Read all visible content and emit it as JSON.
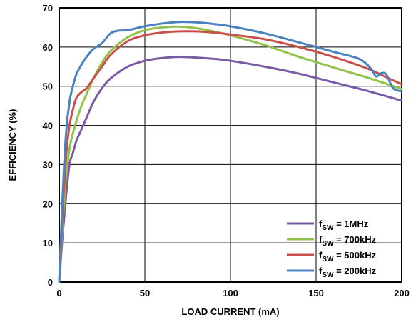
{
  "chart_data": {
    "type": "line",
    "title": "",
    "xlabel": "LOAD CURRENT (mA)",
    "ylabel": "EFFICIENCY (%)",
    "xlim": [
      0,
      200
    ],
    "ylim": [
      0,
      70
    ],
    "xticks": [
      0,
      50,
      100,
      150,
      200
    ],
    "yticks": [
      0,
      10,
      20,
      30,
      40,
      50,
      60,
      70
    ],
    "grid": true,
    "legend_position": "bottom-right",
    "series": [
      {
        "name_main": "f",
        "name_sub": "SW",
        "name_suffix": " = 1MHz",
        "color": "#7a5aa6",
        "x": [
          0,
          2,
          4,
          6,
          8,
          10,
          13,
          16,
          20,
          25,
          30,
          40,
          50,
          60,
          70,
          80,
          90,
          100,
          120,
          140,
          160,
          180,
          200
        ],
        "y": [
          0,
          12,
          22,
          30,
          33,
          36,
          39,
          42,
          46,
          49.5,
          52,
          55,
          56.5,
          57.2,
          57.5,
          57.3,
          57,
          56.5,
          55,
          53.2,
          51,
          48.8,
          46.3
        ]
      },
      {
        "name_main": "f",
        "name_sub": "SW",
        "name_suffix": " = 700kHz",
        "color": "#93c24a",
        "x": [
          0,
          2,
          4,
          6,
          8,
          10,
          13,
          16,
          20,
          25,
          30,
          40,
          50,
          60,
          70,
          80,
          90,
          100,
          120,
          140,
          160,
          180,
          200
        ],
        "y": [
          0,
          15,
          27,
          34,
          38,
          41,
          45,
          48,
          52,
          56,
          59,
          62.5,
          64.3,
          65,
          65.2,
          64.8,
          64,
          63,
          60.5,
          57.5,
          54.8,
          52.2,
          49.3
        ]
      },
      {
        "name_main": "f",
        "name_sub": "SW",
        "name_suffix": " = 500kHz",
        "color": "#c8504b",
        "x": [
          0,
          2,
          4,
          6,
          8,
          10,
          13,
          16,
          20,
          25,
          30,
          40,
          50,
          60,
          70,
          80,
          90,
          100,
          120,
          140,
          160,
          180,
          190,
          200
        ],
        "y": [
          0,
          18,
          32,
          40,
          44,
          47,
          48.5,
          49.5,
          52,
          55,
          58,
          61.5,
          63,
          63.7,
          64,
          64,
          63.7,
          63.2,
          62,
          60,
          57.5,
          54.5,
          52.5,
          50.5
        ]
      },
      {
        "name_main": "f",
        "name_sub": "SW",
        "name_suffix": " = 200kHz",
        "color": "#4a82c0",
        "x": [
          0,
          2,
          4,
          6,
          8,
          10,
          13,
          16,
          20,
          25,
          30,
          35,
          40,
          50,
          60,
          70,
          80,
          90,
          100,
          120,
          140,
          160,
          175,
          182,
          185,
          188,
          191,
          195,
          200
        ],
        "y": [
          0,
          22,
          38,
          46,
          50,
          53,
          55.5,
          57.5,
          59.5,
          61,
          63.5,
          64.2,
          64.3,
          65.3,
          66,
          66.4,
          66.3,
          65.9,
          65.3,
          63.5,
          61.2,
          58.8,
          57,
          54.5,
          52.5,
          53.3,
          53,
          49.5,
          48.7
        ]
      }
    ]
  }
}
